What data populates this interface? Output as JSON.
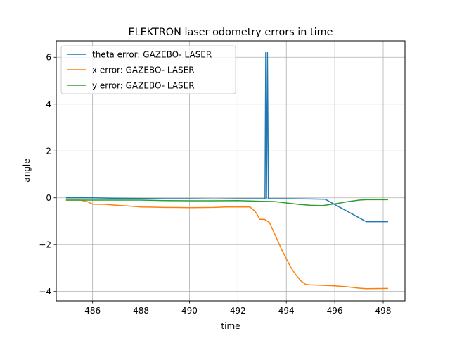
{
  "chart_data": {
    "type": "line",
    "title": "ELEKTRON laser odometry errors in time",
    "xlabel": "time",
    "ylabel": "angle",
    "xlim": [
      484.5,
      498.9
    ],
    "ylim": [
      -4.4,
      6.7
    ],
    "xticks": [
      486,
      488,
      490,
      492,
      494,
      496,
      498
    ],
    "yticks": [
      -4,
      -2,
      0,
      2,
      4,
      6
    ],
    "grid": true,
    "legend_position": "upper-left",
    "series": [
      {
        "name": "theta error: GAZEBO- LASER",
        "color": "#1f77b4",
        "x": [
          484.9,
          486.0,
          487.0,
          488.0,
          489.0,
          490.0,
          491.0,
          492.0,
          493.0,
          493.12,
          493.15,
          493.18,
          493.22,
          493.26,
          493.3,
          494.0,
          495.0,
          495.6,
          497.3,
          498.2
        ],
        "y": [
          0.0,
          0.0,
          -0.02,
          -0.03,
          -0.04,
          -0.04,
          -0.05,
          -0.04,
          -0.04,
          -0.04,
          6.2,
          -0.04,
          6.2,
          -0.04,
          -0.04,
          -0.04,
          -0.05,
          -0.06,
          -1.02,
          -1.02
        ]
      },
      {
        "name": "x error: GAZEBO- LASER",
        "color": "#ff7f0e",
        "x": [
          484.9,
          485.5,
          485.8,
          486.0,
          486.5,
          487.0,
          487.5,
          488.0,
          488.5,
          489.0,
          490.0,
          491.0,
          491.5,
          492.0,
          492.5,
          492.7,
          492.8,
          492.9,
          493.1,
          493.3,
          493.5,
          493.8,
          494.0,
          494.2,
          494.4,
          494.6,
          494.8,
          495.0,
          495.5,
          496.0,
          496.5,
          497.0,
          497.3,
          498.2
        ],
        "y": [
          -0.1,
          -0.1,
          -0.17,
          -0.27,
          -0.28,
          -0.32,
          -0.35,
          -0.39,
          -0.4,
          -0.41,
          -0.42,
          -0.41,
          -0.39,
          -0.39,
          -0.39,
          -0.57,
          -0.72,
          -0.92,
          -0.92,
          -1.05,
          -1.5,
          -2.2,
          -2.6,
          -3.0,
          -3.3,
          -3.55,
          -3.7,
          -3.72,
          -3.74,
          -3.76,
          -3.8,
          -3.86,
          -3.88,
          -3.87
        ]
      },
      {
        "name": "y error: GAZEBO- LASER",
        "color": "#2ca02c",
        "x": [
          484.9,
          486.0,
          487.0,
          488.0,
          489.0,
          490.0,
          491.0,
          492.0,
          493.0,
          493.5,
          494.0,
          494.5,
          495.0,
          495.5,
          496.0,
          496.5,
          497.0,
          497.3,
          498.2
        ],
        "y": [
          -0.1,
          -0.1,
          -0.1,
          -0.1,
          -0.12,
          -0.13,
          -0.13,
          -0.12,
          -0.15,
          -0.16,
          -0.22,
          -0.28,
          -0.32,
          -0.33,
          -0.26,
          -0.17,
          -0.1,
          -0.08,
          -0.08
        ]
      }
    ]
  }
}
